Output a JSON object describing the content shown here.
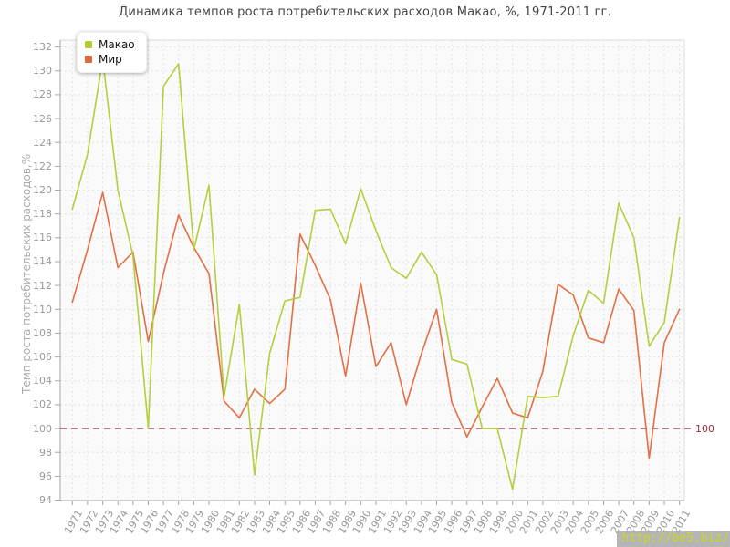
{
  "title": "Динамика темпов роста потребительских расходов Макао, %, 1971-2011 гг.",
  "y_axis_title": "Темп роста потребительских расходов,%",
  "legend": [
    {
      "label": "Макао",
      "color": "#b3cc33"
    },
    {
      "label": "Мир",
      "color": "#e2683b"
    }
  ],
  "reference_line": {
    "value": 100,
    "label": "100",
    "color": "#98293a"
  },
  "watermark": "http://be5.biz/",
  "colors": {
    "macao_line": "#b3cf3c",
    "world_line": "#e36f42",
    "grid": "#e2e2e2",
    "plot_bg": "#fafafa",
    "plot_border": "#dcdcdc",
    "axis": "#a5a5a5",
    "tick_label": "#999999",
    "title": "#444444"
  },
  "chart_data": {
    "type": "line",
    "x": [
      1971,
      1972,
      1973,
      1974,
      1975,
      1976,
      1977,
      1978,
      1979,
      1980,
      1981,
      1982,
      1983,
      1984,
      1985,
      1986,
      1987,
      1988,
      1989,
      1990,
      1991,
      1992,
      1993,
      1994,
      1995,
      1996,
      1997,
      1998,
      1999,
      2000,
      2001,
      2002,
      2003,
      2004,
      2005,
      2006,
      2007,
      2008,
      2009,
      2010,
      2011
    ],
    "series": [
      {
        "name": "Макао",
        "color": "#b3cf3c",
        "values": [
          118.4,
          123.0,
          131.0,
          120.0,
          114.5,
          100.0,
          128.7,
          130.6,
          115.0,
          120.4,
          102.7,
          110.4,
          96.1,
          106.3,
          110.7,
          111.0,
          118.3,
          118.4,
          115.5,
          120.1,
          116.6,
          113.5,
          112.6,
          114.8,
          112.9,
          105.8,
          105.4,
          100.0,
          100.0,
          94.9,
          102.7,
          102.6,
          102.7,
          107.8,
          111.6,
          110.5,
          118.9,
          116.0,
          106.9,
          108.9,
          117.7
        ]
      },
      {
        "name": "Мир",
        "color": "#e36f42",
        "values": [
          110.6,
          115.0,
          119.8,
          113.5,
          114.8,
          107.3,
          113.0,
          117.9,
          115.2,
          113.0,
          102.3,
          100.9,
          103.3,
          102.1,
          103.3,
          116.3,
          113.7,
          110.8,
          104.4,
          112.2,
          105.2,
          107.2,
          102.0,
          106.3,
          110.0,
          102.2,
          99.3,
          101.8,
          104.2,
          101.3,
          100.9,
          104.8,
          112.1,
          111.2,
          107.6,
          107.2,
          111.7,
          109.9,
          97.5,
          107.2,
          110.0
        ]
      }
    ],
    "ylim": [
      94,
      132
    ],
    "ytick_step": 2,
    "reference_y": 100,
    "grid": true,
    "legend_position": "top-left",
    "xlabel": "",
    "ylabel": "Темп роста потребительских расходов,%"
  }
}
